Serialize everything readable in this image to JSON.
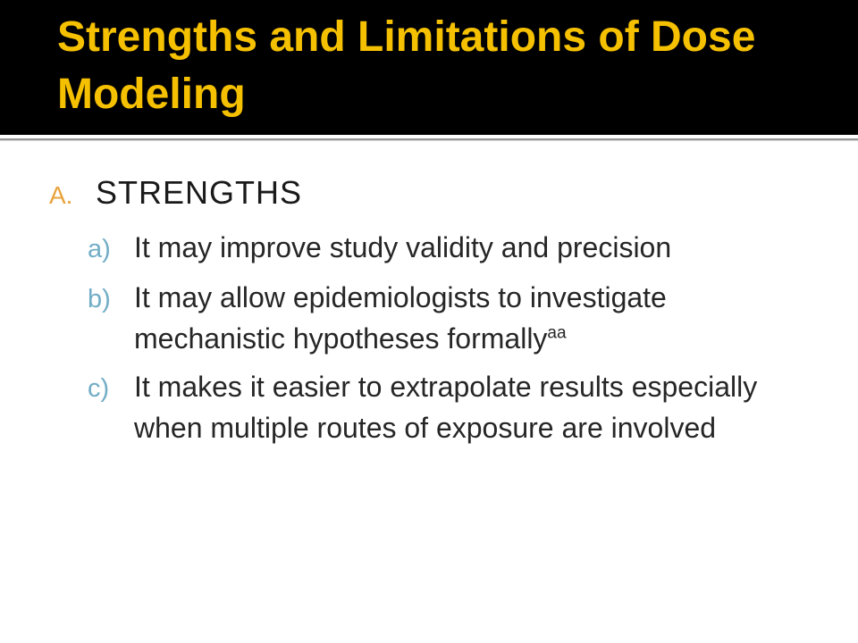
{
  "slide": {
    "title": "Strengths and Limitations of Dose Modeling",
    "colors": {
      "header_background": "#000000",
      "title_text": "#F5C000",
      "heading_marker": "#E8A33D",
      "sub_marker": "#72ADC6",
      "body_text": "#262626",
      "divider_line": "#969696"
    },
    "list": {
      "heading_marker": "A.",
      "heading": "STRENGTHS",
      "items": [
        {
          "marker": "a)",
          "text": "It may improve study validity and precision"
        },
        {
          "marker": "b)",
          "text": "It may allow epidemiologists to investigate mechanistic hypotheses formally",
          "superscript": "aa"
        },
        {
          "marker": "c)",
          "text": "It makes it easier to extrapolate results especially when multiple routes of exposure are involved"
        }
      ]
    }
  }
}
